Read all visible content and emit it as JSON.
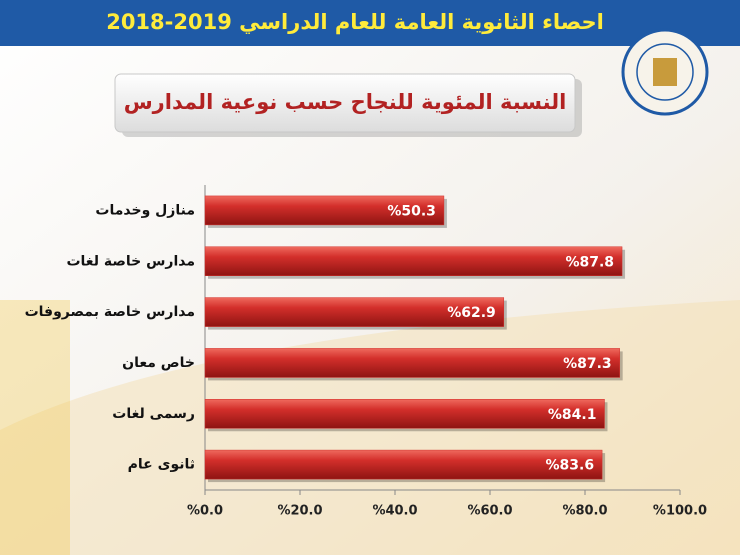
{
  "chart_data": {
    "type": "bar",
    "orientation": "horizontal",
    "title": "احصاء الثانوية العامة للعام الدراسي 2019-2018",
    "subtitle": "النسبة المئوية للنجاح حسب نوعية المدارس",
    "categories": [
      "منازل وخدمات",
      "مدارس خاصة لغات",
      "مدارس خاصة بمصروفات",
      "خاص معان",
      "رسمى لغات",
      "ثانوى عام"
    ],
    "values": [
      50.3,
      87.8,
      62.9,
      87.3,
      84.1,
      83.6
    ],
    "value_labels": [
      "%50.3",
      "%87.8",
      "%62.9",
      "%87.3",
      "%84.1",
      "%83.6"
    ],
    "color": "#d32f2b",
    "xlim": [
      0,
      100
    ],
    "xticks": [
      {
        "value": 0,
        "label": "%0.0"
      },
      {
        "value": 20,
        "label": "%20.0"
      },
      {
        "value": 40,
        "label": "%40.0"
      },
      {
        "value": 60,
        "label": "%60.0"
      },
      {
        "value": 80,
        "label": "%80.0"
      },
      {
        "value": 100,
        "label": "%100.0"
      }
    ],
    "grid": false
  }
}
